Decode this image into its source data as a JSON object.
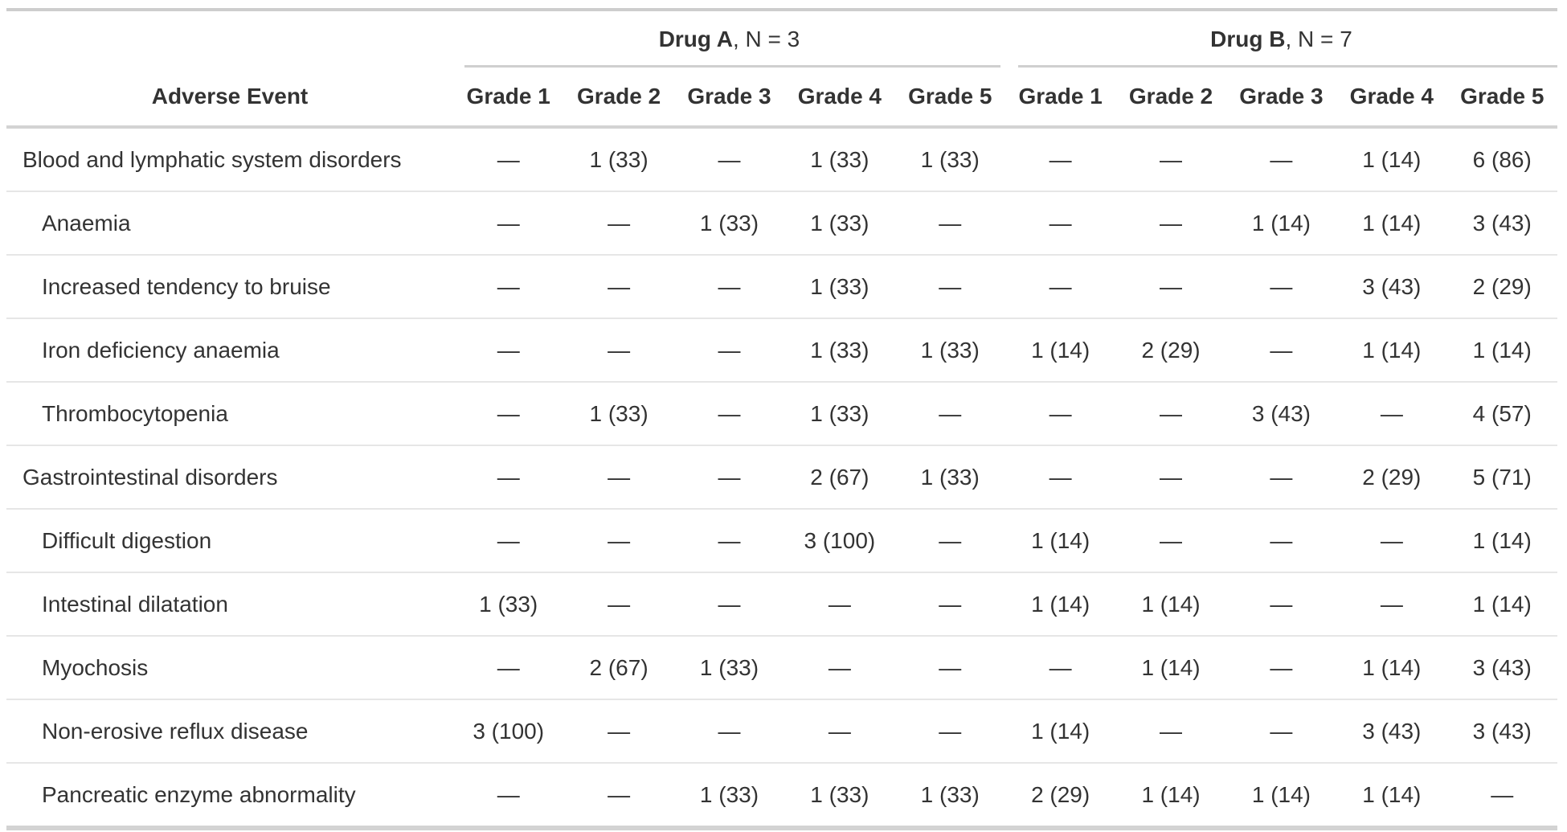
{
  "chart_data": {
    "type": "table",
    "stub_header": "Adverse Event",
    "column_groups": [
      {
        "label": "Drug A",
        "suffix": ", N = 3"
      },
      {
        "label": "Drug B",
        "suffix": ", N = 7"
      }
    ],
    "columns": [
      "Grade 1",
      "Grade 2",
      "Grade 3",
      "Grade 4",
      "Grade 5"
    ],
    "rows": [
      {
        "label": "Blood and lymphatic system disorders",
        "indent": false,
        "drug_a": [
          "—",
          "1 (33)",
          "—",
          "1 (33)",
          "1 (33)"
        ],
        "drug_b": [
          "—",
          "—",
          "—",
          "1 (14)",
          "6 (86)"
        ]
      },
      {
        "label": "Anaemia",
        "indent": true,
        "drug_a": [
          "—",
          "—",
          "1 (33)",
          "1 (33)",
          "—"
        ],
        "drug_b": [
          "—",
          "—",
          "1 (14)",
          "1 (14)",
          "3 (43)"
        ]
      },
      {
        "label": "Increased tendency to bruise",
        "indent": true,
        "drug_a": [
          "—",
          "—",
          "—",
          "1 (33)",
          "—"
        ],
        "drug_b": [
          "—",
          "—",
          "—",
          "3 (43)",
          "2 (29)"
        ]
      },
      {
        "label": "Iron deficiency anaemia",
        "indent": true,
        "drug_a": [
          "—",
          "—",
          "—",
          "1 (33)",
          "1 (33)"
        ],
        "drug_b": [
          "1 (14)",
          "2 (29)",
          "—",
          "1 (14)",
          "1 (14)"
        ]
      },
      {
        "label": "Thrombocytopenia",
        "indent": true,
        "drug_a": [
          "—",
          "1 (33)",
          "—",
          "1 (33)",
          "—"
        ],
        "drug_b": [
          "—",
          "—",
          "3 (43)",
          "—",
          "4 (57)"
        ]
      },
      {
        "label": "Gastrointestinal disorders",
        "indent": false,
        "drug_a": [
          "—",
          "—",
          "—",
          "2 (67)",
          "1 (33)"
        ],
        "drug_b": [
          "—",
          "—",
          "—",
          "2 (29)",
          "5 (71)"
        ]
      },
      {
        "label": "Difficult digestion",
        "indent": true,
        "drug_a": [
          "—",
          "—",
          "—",
          "3 (100)",
          "—"
        ],
        "drug_b": [
          "1 (14)",
          "—",
          "—",
          "—",
          "1 (14)"
        ]
      },
      {
        "label": "Intestinal dilatation",
        "indent": true,
        "drug_a": [
          "1 (33)",
          "—",
          "—",
          "—",
          "—"
        ],
        "drug_b": [
          "1 (14)",
          "1 (14)",
          "—",
          "—",
          "1 (14)"
        ]
      },
      {
        "label": "Myochosis",
        "indent": true,
        "drug_a": [
          "—",
          "2 (67)",
          "1 (33)",
          "—",
          "—"
        ],
        "drug_b": [
          "—",
          "1 (14)",
          "—",
          "1 (14)",
          "3 (43)"
        ]
      },
      {
        "label": "Non-erosive reflux disease",
        "indent": true,
        "drug_a": [
          "3 (100)",
          "—",
          "—",
          "—",
          "—"
        ],
        "drug_b": [
          "1 (14)",
          "—",
          "—",
          "3 (43)",
          "3 (43)"
        ]
      },
      {
        "label": "Pancreatic enzyme abnormality",
        "indent": true,
        "drug_a": [
          "—",
          "—",
          "1 (33)",
          "1 (33)",
          "1 (33)"
        ],
        "drug_b": [
          "2 (29)",
          "1 (14)",
          "1 (14)",
          "1 (14)",
          "—"
        ]
      }
    ],
    "layout": {
      "grid": "horizontal-rules-only",
      "empty_cell_symbol": "—"
    },
    "colors": {
      "text": "#333333",
      "border_top": "#cdcdcd",
      "border_bottom": "#d3d3d3",
      "header_rule": "#d3d3d3",
      "spanner_rule": "#cfcfcf",
      "row_rule": "#e6e6e6",
      "background": "#ffffff"
    }
  }
}
